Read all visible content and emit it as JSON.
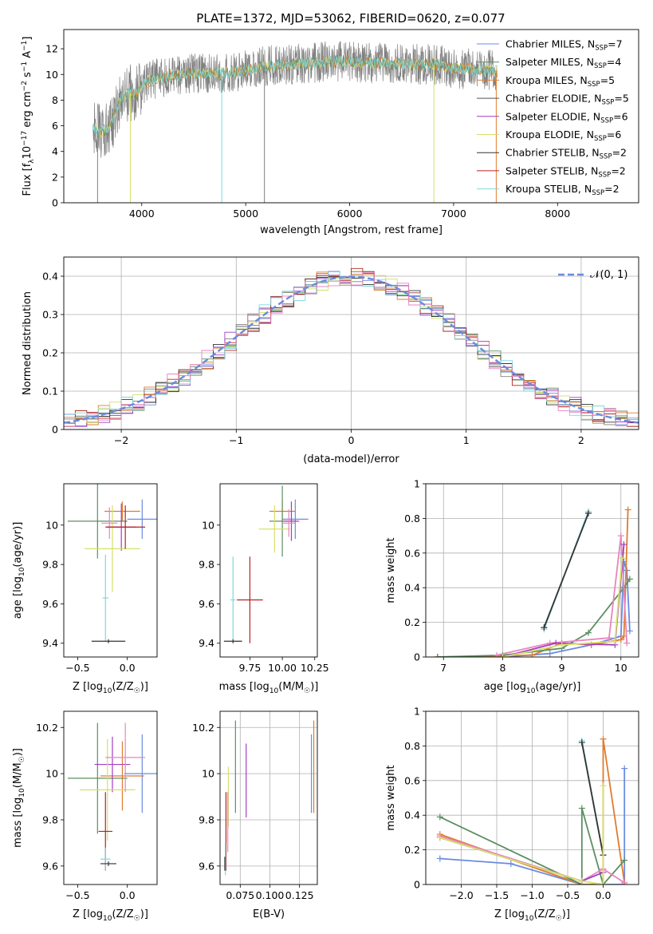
{
  "figure": {
    "title": "PLATE=1372, MJD=53062, FIBERID=0620, z=0.077",
    "colors": {
      "blue": "#6a8be0",
      "orange": "#e07b2e",
      "green": "#5c8f62",
      "red": "#b82020",
      "purple": "#a23cc4",
      "olive": "#d6e06a",
      "pink": "#e884c0",
      "cyan": "#7ed8e0",
      "gray": "#808080",
      "black": "#333333"
    }
  },
  "chart_data": [
    {
      "id": "spectrum",
      "type": "line",
      "xlabel": "wavelength [Angstrom, rest frame]",
      "ylabel": "Flux [f_λ 10^-17 erg cm^-2 s^-1 A^-1]",
      "xlim": [
        3250,
        8780
      ],
      "ylim": [
        0,
        13.5
      ],
      "xticks": [
        4000,
        5000,
        6000,
        7000,
        8000
      ],
      "yticks": [
        0,
        2,
        4,
        6,
        8,
        10,
        12
      ],
      "grid": false,
      "legend_position": "upper right",
      "data_range": [
        3530,
        7420
      ],
      "legend": [
        {
          "name": "Chabrier MILES, N_SSP=7",
          "color": "#6a8be0"
        },
        {
          "name": "Salpeter MILES, N_SSP=4",
          "color": "#5c8f62"
        },
        {
          "name": "Kroupa MILES, N_SSP=5",
          "color": "#e07b2e"
        },
        {
          "name": "Chabrier ELODIE, N_SSP=5",
          "color": "#555555"
        },
        {
          "name": "Salpeter ELODIE, N_SSP=6",
          "color": "#a23cc4"
        },
        {
          "name": "Kroupa ELODIE, N_SSP=6",
          "color": "#d6e06a"
        },
        {
          "name": "Chabrier STELIB, N_SSP=2",
          "color": "#333333"
        },
        {
          "name": "Salpeter STELIB, N_SSP=2",
          "color": "#b82020"
        },
        {
          "name": "Kroupa STELIB, N_SSP=2",
          "color": "#7ed8e0"
        }
      ],
      "continuum": [
        [
          3530,
          6.0
        ],
        [
          3600,
          5.4
        ],
        [
          3700,
          6.0
        ],
        [
          3800,
          8.2
        ],
        [
          3900,
          8.6
        ],
        [
          3950,
          8.4
        ],
        [
          4000,
          9.2
        ],
        [
          4100,
          9.6
        ],
        [
          4300,
          9.9
        ],
        [
          4500,
          10.1
        ],
        [
          4800,
          10.1
        ],
        [
          5000,
          10.3
        ],
        [
          5200,
          10.7
        ],
        [
          5500,
          10.8
        ],
        [
          5800,
          11.0
        ],
        [
          6000,
          11.0
        ],
        [
          6200,
          10.9
        ],
        [
          6500,
          10.8
        ],
        [
          6800,
          10.8
        ],
        [
          7000,
          10.5
        ],
        [
          7200,
          10.4
        ],
        [
          7400,
          10.3
        ]
      ],
      "features": [
        {
          "x": 3575,
          "y": 0.0
        },
        {
          "x": 3890,
          "y": 0.0
        },
        {
          "x": 4770,
          "y": 0.0
        },
        {
          "x": 5180,
          "y": 0.0
        },
        {
          "x": 6810,
          "y": 0.0
        },
        {
          "x": 7410,
          "y": 0.0
        }
      ]
    },
    {
      "id": "residuals",
      "type": "line",
      "xlabel": "(data-model)/error",
      "ylabel": "Normed distribution",
      "xlim": [
        -2.5,
        2.5
      ],
      "ylim": [
        0,
        0.45
      ],
      "xticks": [
        -2,
        -1,
        0,
        1,
        2
      ],
      "yticks": [
        0.0,
        0.1,
        0.2,
        0.3,
        0.4
      ],
      "grid": true,
      "legend_position": "upper right",
      "legend": [
        {
          "name": "𝒩(0, 1)",
          "style": "dashed"
        }
      ],
      "gaussian": {
        "mu": 0,
        "sigma": 1
      }
    },
    {
      "id": "age_vs_Z",
      "type": "scatter",
      "xlabel": "Z [log10(Z/Z☉)]",
      "ylabel": "age  [log10(age/yr)]",
      "xlim": [
        -0.64,
        0.3
      ],
      "ylim": [
        9.33,
        10.21
      ],
      "xticks": [
        -0.5,
        0.0
      ],
      "xticklabels": [
        "−0.5",
        "0.0"
      ],
      "yticks": [
        9.4,
        9.6,
        9.8,
        10.0
      ],
      "grid": false,
      "points": [
        {
          "x": 0.15,
          "y": 10.03,
          "xerr": 0.15,
          "yerr": 0.1,
          "color": "#6a8be0"
        },
        {
          "x": -0.05,
          "y": 10.07,
          "xerr": 0.18,
          "yerr": 0.05,
          "color": "#e07b2e"
        },
        {
          "x": -0.3,
          "y": 10.02,
          "xerr": 0.3,
          "yerr": 0.19,
          "color": "#5c8f62"
        },
        {
          "x": -0.06,
          "y": 9.99,
          "xerr": 0.15,
          "yerr": 0.12,
          "color": "#a23cc4"
        },
        {
          "x": -0.15,
          "y": 9.88,
          "xerr": 0.28,
          "yerr": 0.22,
          "color": "#d6e06a"
        },
        {
          "x": -0.18,
          "y": 10.01,
          "xerr": 0.08,
          "yerr": 0.08,
          "color": "#e884c0"
        },
        {
          "x": -0.02,
          "y": 9.99,
          "xerr": 0.2,
          "yerr": 0.11,
          "color": "#b82020"
        },
        {
          "x": -0.22,
          "y": 9.63,
          "xerr": 0.03,
          "yerr": 0.22,
          "color": "#7ed8e0"
        },
        {
          "x": -0.19,
          "y": 9.41,
          "xerr": 0.17,
          "yerr": 0.01,
          "color": "#333333"
        }
      ]
    },
    {
      "id": "age_vs_mass",
      "type": "scatter",
      "xlabel": "mass [log10(M/M☉)]",
      "ylabel": "",
      "xlim": [
        9.52,
        10.27
      ],
      "ylim": [
        9.33,
        10.21
      ],
      "xticks": [
        9.75,
        10.0,
        10.25
      ],
      "xticklabels": [
        "9.75",
        "10.00",
        "10.25"
      ],
      "yticks": [
        9.4,
        9.6,
        9.8,
        10.0
      ],
      "grid": false,
      "points": [
        {
          "x": 10.1,
          "y": 10.03,
          "xerr": 0.1,
          "yerr": 0.1,
          "color": "#6a8be0"
        },
        {
          "x": 10.0,
          "y": 10.07,
          "xerr": 0.1,
          "yerr": 0.05,
          "color": "#e07b2e"
        },
        {
          "x": 10.0,
          "y": 10.02,
          "xerr": 0.1,
          "yerr": 0.18,
          "color": "#5c8f62"
        },
        {
          "x": 10.07,
          "y": 10.02,
          "xerr": 0.06,
          "yerr": 0.1,
          "color": "#a23cc4"
        },
        {
          "x": 9.94,
          "y": 9.98,
          "xerr": 0.12,
          "yerr": 0.12,
          "color": "#d6e06a"
        },
        {
          "x": 10.05,
          "y": 10.01,
          "xerr": 0.05,
          "yerr": 0.07,
          "color": "#e884c0"
        },
        {
          "x": 9.75,
          "y": 9.62,
          "xerr": 0.1,
          "yerr": 0.22,
          "color": "#b82020"
        },
        {
          "x": 9.62,
          "y": 9.62,
          "xerr": 0.02,
          "yerr": 0.22,
          "color": "#7ed8e0"
        },
        {
          "x": 9.62,
          "y": 9.41,
          "xerr": 0.07,
          "yerr": 0.01,
          "color": "#333333"
        }
      ]
    },
    {
      "id": "massweight_vs_age",
      "type": "line",
      "xlabel": "age  [log10(age/yr)]",
      "ylabel": "mass weight",
      "xlim": [
        6.7,
        10.3
      ],
      "ylim": [
        0,
        1.0
      ],
      "xticks": [
        7,
        8,
        9,
        10
      ],
      "yticks": [
        0.0,
        0.2,
        0.4,
        0.6,
        0.8,
        1.0
      ],
      "grid": true,
      "series": [
        {
          "color": "#7ed8e0",
          "x": [
            8.7,
            9.45
          ],
          "y": [
            0.16,
            0.84
          ]
        },
        {
          "color": "#333333",
          "x": [
            8.7,
            9.45
          ],
          "y": [
            0.17,
            0.83
          ]
        },
        {
          "color": "#6a8be0",
          "x": [
            6.9,
            8.0,
            8.8,
            9.5,
            10.0,
            10.05,
            10.1,
            10.15
          ],
          "y": [
            0.0,
            0.0,
            0.02,
            0.07,
            0.12,
            0.55,
            0.5,
            0.15
          ]
        },
        {
          "color": "#e07b2e",
          "x": [
            6.9,
            8.5,
            9.0,
            9.5,
            10.0,
            10.05,
            10.12
          ],
          "y": [
            0.0,
            0.01,
            0.08,
            0.07,
            0.1,
            0.12,
            0.85
          ]
        },
        {
          "color": "#5c8f62",
          "x": [
            6.9,
            8.0,
            9.0,
            9.45,
            10.05,
            10.15
          ],
          "y": [
            0.0,
            0.01,
            0.05,
            0.14,
            0.4,
            0.45
          ]
        },
        {
          "color": "#e884c0",
          "x": [
            7.9,
            8.8,
            9.8,
            10.0,
            10.1
          ],
          "y": [
            0.01,
            0.08,
            0.11,
            0.7,
            0.08
          ]
        },
        {
          "color": "#a23cc4",
          "x": [
            8.0,
            8.9,
            9.9,
            10.05
          ],
          "y": [
            0.0,
            0.08,
            0.07,
            0.65
          ]
        },
        {
          "color": "#d6e06a",
          "x": [
            8.0,
            9.0,
            9.9,
            10.02
          ],
          "y": [
            0.0,
            0.07,
            0.09,
            0.57
          ]
        }
      ]
    },
    {
      "id": "mass_vs_Z",
      "type": "scatter",
      "xlabel": "Z [log10(Z/Z☉)]",
      "ylabel": "mass [log10(M/M☉)]",
      "xlim": [
        -0.64,
        0.3
      ],
      "ylim": [
        9.52,
        10.27
      ],
      "xticks": [
        -0.5,
        0.0
      ],
      "xticklabels": [
        "−0.5",
        "0.0"
      ],
      "yticks": [
        9.6,
        9.8,
        10.0,
        10.2
      ],
      "grid": false,
      "points": [
        {
          "x": 0.15,
          "y": 10.0,
          "xerr": 0.18,
          "yerr": 0.17,
          "color": "#6a8be0"
        },
        {
          "x": -0.05,
          "y": 9.99,
          "xerr": 0.22,
          "yerr": 0.15,
          "color": "#e07b2e"
        },
        {
          "x": -0.3,
          "y": 9.98,
          "xerr": 0.3,
          "yerr": 0.24,
          "color": "#5c8f62"
        },
        {
          "x": -0.15,
          "y": 10.04,
          "xerr": 0.18,
          "yerr": 0.12,
          "color": "#a23cc4"
        },
        {
          "x": -0.2,
          "y": 9.93,
          "xerr": 0.28,
          "yerr": 0.22,
          "color": "#d6e06a"
        },
        {
          "x": -0.02,
          "y": 10.07,
          "xerr": 0.2,
          "yerr": 0.15,
          "color": "#e884c0"
        },
        {
          "x": -0.22,
          "y": 9.75,
          "xerr": 0.07,
          "yerr": 0.17,
          "color": "#b82020"
        },
        {
          "x": -0.22,
          "y": 9.63,
          "xerr": 0.05,
          "yerr": 0.05,
          "color": "#7ed8e0"
        },
        {
          "x": -0.19,
          "y": 9.61,
          "xerr": 0.08,
          "yerr": 0.01,
          "color": "#333333"
        }
      ]
    },
    {
      "id": "mass_vs_ebv",
      "type": "scatter",
      "xlabel": "E(B-V)",
      "ylabel": "",
      "xlim": [
        0.058,
        0.14
      ],
      "ylim": [
        9.52,
        10.27
      ],
      "xticks": [
        0.075,
        0.1,
        0.125
      ],
      "xticklabels": [
        "0.075",
        "0.100",
        "0.125"
      ],
      "yticks": [
        9.6,
        9.8,
        10.0,
        10.2
      ],
      "grid": true,
      "points": [
        {
          "x": 0.135,
          "y": 10.0,
          "xerr": 0.0,
          "yerr": 0.17,
          "color": "#6a8be0"
        },
        {
          "x": 0.137,
          "y": 10.03,
          "xerr": 0.0,
          "yerr": 0.2,
          "color": "#e07b2e"
        },
        {
          "x": 0.071,
          "y": 10.03,
          "xerr": 0.0,
          "yerr": 0.2,
          "color": "#5c8f62"
        },
        {
          "x": 0.08,
          "y": 9.97,
          "xerr": 0.0,
          "yerr": 0.16,
          "color": "#a23cc4"
        },
        {
          "x": 0.065,
          "y": 9.9,
          "xerr": 0.0,
          "yerr": 0.13,
          "color": "#d6e06a"
        },
        {
          "x": 0.0645,
          "y": 9.79,
          "xerr": 0.0,
          "yerr": 0.13,
          "color": "#e884c0"
        },
        {
          "x": 0.063,
          "y": 9.75,
          "xerr": 0.0,
          "yerr": 0.17,
          "color": "#b82020"
        },
        {
          "x": 0.0625,
          "y": 9.63,
          "xerr": 0.0,
          "yerr": 0.07,
          "color": "#7ed8e0"
        },
        {
          "x": 0.062,
          "y": 9.61,
          "xerr": 0.0,
          "yerr": 0.03,
          "color": "#333333"
        }
      ]
    },
    {
      "id": "massweight_vs_Z",
      "type": "line",
      "xlabel": "Z [log10(Z/Z☉)]",
      "ylabel": "mass weight",
      "xlim": [
        -2.5,
        0.5
      ],
      "ylim": [
        0,
        1.0
      ],
      "xticks": [
        -2.0,
        -1.5,
        -1.0,
        -0.5,
        0.0
      ],
      "xticklabels": [
        "−2.0",
        "−1.5",
        "−1.0",
        "−0.5",
        "0.0"
      ],
      "yticks": [
        0.0,
        0.2,
        0.4,
        0.6,
        0.8,
        1.0
      ],
      "grid": true,
      "series": [
        {
          "color": "#7ed8e0",
          "x": [
            -0.3,
            0.0
          ],
          "y": [
            0.83,
            0.17
          ]
        },
        {
          "color": "#333333",
          "x": [
            -0.3,
            0.0
          ],
          "y": [
            0.82,
            0.17
          ]
        },
        {
          "color": "#6a8be0",
          "x": [
            -2.3,
            -1.3,
            -0.3,
            0.0,
            0.3,
            0.3
          ],
          "y": [
            0.15,
            0.12,
            0.0,
            0.0,
            0.0,
            0.67
          ]
        },
        {
          "color": "#e07b2e",
          "x": [
            -2.3,
            -0.3,
            0.0,
            0.0,
            0.3
          ],
          "y": [
            0.29,
            0.0,
            0.0,
            0.84,
            0.01
          ]
        },
        {
          "color": "#5c8f62",
          "x": [
            -2.3,
            -0.3,
            -0.3,
            0.0,
            0.3
          ],
          "y": [
            0.39,
            0.0,
            0.44,
            0.0,
            0.14
          ]
        },
        {
          "color": "#e884c0",
          "x": [
            -2.3,
            -0.3,
            0.0,
            0.3
          ],
          "y": [
            0.28,
            0.02,
            0.09,
            0.01
          ]
        },
        {
          "color": "#a23cc4",
          "x": [
            -2.3,
            -0.3,
            0.0
          ],
          "y": [
            0.27,
            0.02,
            0.07
          ]
        },
        {
          "color": "#d6e06a",
          "x": [
            -2.3,
            -0.3,
            0.0,
            0.0
          ],
          "y": [
            0.27,
            0.02,
            0.0,
            0.57
          ]
        }
      ]
    }
  ]
}
